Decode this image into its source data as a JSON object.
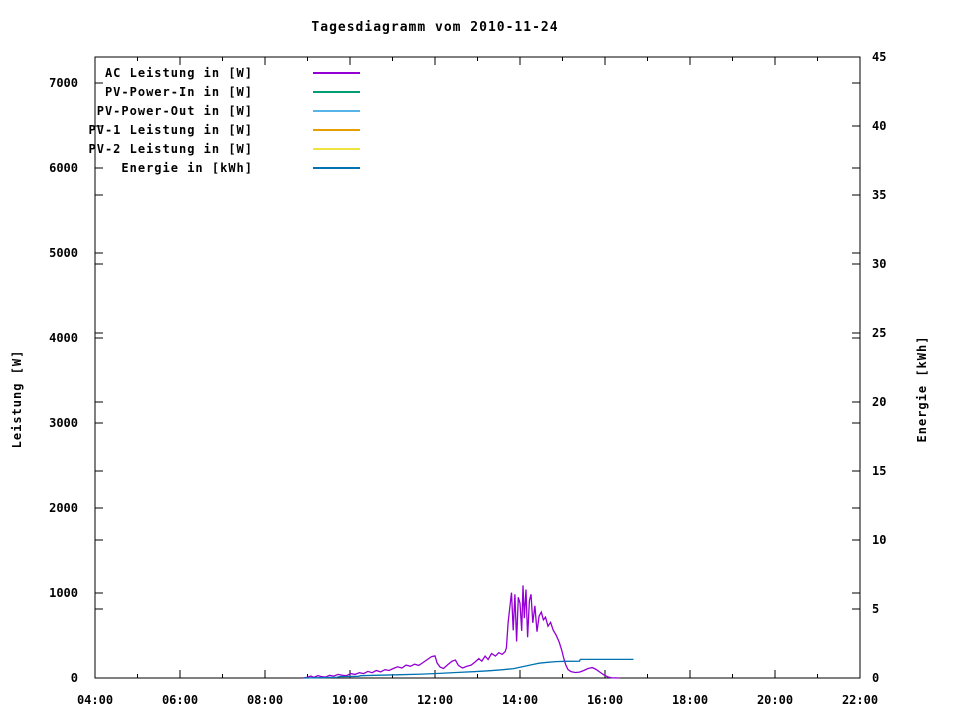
{
  "title": "Tagesdiagramm vom 2010-11-24",
  "axes": {
    "x": {
      "major_hours": [
        4,
        6,
        8,
        10,
        12,
        14,
        16,
        18,
        20,
        22
      ],
      "major_labels": [
        "04:00",
        "06:00",
        "08:00",
        "10:00",
        "12:00",
        "14:00",
        "16:00",
        "18:00",
        "20:00",
        "22:00"
      ],
      "minor_hours": [
        5,
        7,
        9,
        11,
        13,
        15,
        17,
        19,
        21
      ],
      "min": 4,
      "max": 22
    },
    "y_left": {
      "label": "Leistung [W]",
      "ticks": [
        0,
        1000,
        2000,
        3000,
        4000,
        5000,
        6000,
        7000
      ],
      "min": 0,
      "max": 7306
    },
    "y_right": {
      "label": "Energie [kWh]",
      "ticks": [
        0,
        5,
        10,
        15,
        20,
        25,
        30,
        35,
        40,
        45
      ],
      "min": 0,
      "max": 45
    }
  },
  "chart_data": {
    "type": "line",
    "title": "Tagesdiagramm vom 2010-11-24",
    "x_unit": "time of day, decimal hours",
    "xlim": [
      4,
      22
    ],
    "ylim_left": [
      0,
      7306
    ],
    "ylim_right": [
      0,
      45
    ],
    "grid": false,
    "legend_position": "top-left inside",
    "series": [
      {
        "name": "AC Leistung in [W]",
        "axis": "left",
        "color": "#9400d3",
        "points": [
          [
            8.88,
            0
          ],
          [
            9.0,
            8
          ],
          [
            9.08,
            22
          ],
          [
            9.15,
            8
          ],
          [
            9.25,
            28
          ],
          [
            9.33,
            15
          ],
          [
            9.43,
            12
          ],
          [
            9.52,
            32
          ],
          [
            9.62,
            22
          ],
          [
            9.72,
            42
          ],
          [
            9.82,
            32
          ],
          [
            9.92,
            28
          ],
          [
            10.02,
            52
          ],
          [
            10.12,
            42
          ],
          [
            10.22,
            62
          ],
          [
            10.32,
            52
          ],
          [
            10.42,
            78
          ],
          [
            10.52,
            62
          ],
          [
            10.62,
            88
          ],
          [
            10.72,
            72
          ],
          [
            10.82,
            98
          ],
          [
            10.92,
            88
          ],
          [
            11.02,
            112
          ],
          [
            11.12,
            132
          ],
          [
            11.22,
            118
          ],
          [
            11.32,
            152
          ],
          [
            11.42,
            138
          ],
          [
            11.52,
            162
          ],
          [
            11.62,
            148
          ],
          [
            11.72,
            182
          ],
          [
            11.82,
            218
          ],
          [
            11.92,
            252
          ],
          [
            12.0,
            260
          ],
          [
            12.05,
            178
          ],
          [
            12.12,
            128
          ],
          [
            12.2,
            112
          ],
          [
            12.3,
            158
          ],
          [
            12.4,
            198
          ],
          [
            12.48,
            212
          ],
          [
            12.55,
            148
          ],
          [
            12.65,
            118
          ],
          [
            12.75,
            138
          ],
          [
            12.85,
            152
          ],
          [
            12.95,
            192
          ],
          [
            13.03,
            228
          ],
          [
            13.1,
            198
          ],
          [
            13.18,
            258
          ],
          [
            13.25,
            218
          ],
          [
            13.33,
            288
          ],
          [
            13.42,
            258
          ],
          [
            13.5,
            298
          ],
          [
            13.58,
            278
          ],
          [
            13.65,
            308
          ],
          [
            13.68,
            355
          ],
          [
            13.72,
            650
          ],
          [
            13.76,
            830
          ],
          [
            13.8,
            1005
          ],
          [
            13.84,
            560
          ],
          [
            13.88,
            985
          ],
          [
            13.92,
            430
          ],
          [
            13.96,
            950
          ],
          [
            14.0,
            880
          ],
          [
            14.04,
            555
          ],
          [
            14.07,
            1090
          ],
          [
            14.1,
            705
          ],
          [
            14.14,
            1040
          ],
          [
            14.18,
            480
          ],
          [
            14.22,
            910
          ],
          [
            14.26,
            985
          ],
          [
            14.3,
            650
          ],
          [
            14.35,
            850
          ],
          [
            14.4,
            545
          ],
          [
            14.45,
            730
          ],
          [
            14.5,
            775
          ],
          [
            14.55,
            685
          ],
          [
            14.6,
            715
          ],
          [
            14.66,
            610
          ],
          [
            14.72,
            655
          ],
          [
            14.78,
            565
          ],
          [
            14.85,
            505
          ],
          [
            14.92,
            425
          ],
          [
            14.98,
            330
          ],
          [
            15.03,
            230
          ],
          [
            15.08,
            150
          ],
          [
            15.13,
            100
          ],
          [
            15.2,
            75
          ],
          [
            15.3,
            65
          ],
          [
            15.4,
            70
          ],
          [
            15.5,
            88
          ],
          [
            15.6,
            112
          ],
          [
            15.7,
            122
          ],
          [
            15.78,
            105
          ],
          [
            15.88,
            70
          ],
          [
            15.97,
            38
          ],
          [
            16.07,
            12
          ],
          [
            16.15,
            2
          ],
          [
            16.35,
            0
          ]
        ]
      },
      {
        "name": "PV-Power-In in [W]",
        "axis": "left",
        "color": "#009e73",
        "points": []
      },
      {
        "name": "PV-Power-Out in [W]",
        "axis": "left",
        "color": "#56b4e9",
        "points": []
      },
      {
        "name": "PV-1 Leistung in [W]",
        "axis": "left",
        "color": "#e69f00",
        "points": []
      },
      {
        "name": "PV-2 Leistung in [W]",
        "axis": "left",
        "color": "#f0e442",
        "points": []
      },
      {
        "name": "Energie in [kWh]",
        "axis": "right",
        "color": "#0072b2",
        "points": [
          [
            8.9,
            0
          ],
          [
            9.3,
            0.02
          ],
          [
            9.7,
            0.05
          ],
          [
            9.75,
            0.1
          ],
          [
            10.2,
            0.12
          ],
          [
            10.25,
            0.17
          ],
          [
            10.7,
            0.2
          ],
          [
            11.2,
            0.24
          ],
          [
            11.7,
            0.28
          ],
          [
            12.1,
            0.33
          ],
          [
            12.5,
            0.4
          ],
          [
            12.9,
            0.46
          ],
          [
            13.3,
            0.53
          ],
          [
            13.6,
            0.6
          ],
          [
            13.85,
            0.68
          ],
          [
            14.0,
            0.78
          ],
          [
            14.15,
            0.88
          ],
          [
            14.3,
            0.98
          ],
          [
            14.45,
            1.07
          ],
          [
            14.65,
            1.14
          ],
          [
            14.85,
            1.19
          ],
          [
            15.05,
            1.21
          ],
          [
            15.4,
            1.22
          ],
          [
            15.42,
            1.35
          ],
          [
            16.67,
            1.35
          ]
        ]
      }
    ]
  }
}
